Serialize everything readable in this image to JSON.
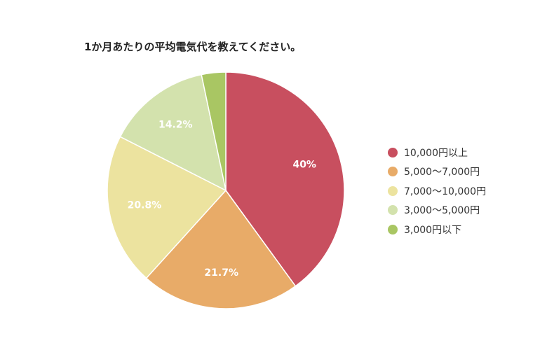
{
  "chart_data": {
    "type": "pie",
    "title": "1か月あたりの平均電気代を教えてください。",
    "slices": [
      {
        "label": "10,000円以上",
        "value": 40,
        "display": "40%",
        "color": "#c84f5f"
      },
      {
        "label": "5,000〜7,000円",
        "value": 21.7,
        "display": "21.7%",
        "color": "#e8ab68"
      },
      {
        "label": "7,000〜10,000円",
        "value": 20.8,
        "display": "20.8%",
        "color": "#ece39f"
      },
      {
        "label": "3,000〜5,000円",
        "value": 14.2,
        "display": "14.2%",
        "color": "#d3e2ad"
      },
      {
        "label": "3,000円以下",
        "value": 3.3,
        "display": "",
        "color": "#a9c663"
      }
    ],
    "legend_position": "right"
  }
}
